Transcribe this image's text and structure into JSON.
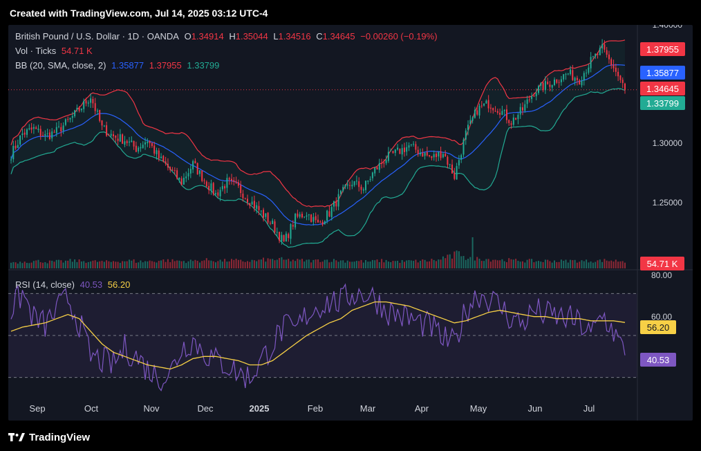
{
  "header": {
    "watermark": "Created with TradingView.com, Jul 14, 2025 03:12 UTC-4"
  },
  "legend": {
    "symbol": "British Pound / U.S. Dollar · 1D · OANDA",
    "o_label": "O",
    "o_value": "1.34914",
    "h_label": "H",
    "h_value": "1.35044",
    "l_label": "L",
    "l_value": "1.34516",
    "c_label": "C",
    "c_value": "1.34645",
    "change": "−0.00260 (−0.19%)",
    "vol_label": "Vol · Ticks",
    "vol_value": "54.71 K",
    "bb_label": "BB (20, SMA, close, 2)",
    "bb_basis": "1.35877",
    "bb_upper": "1.37955",
    "bb_lower": "1.33799",
    "rsi_label": "RSI (14, close)",
    "rsi_value": "40.53",
    "rsi_ma": "56.20"
  },
  "footer": {
    "brand": "TradingView"
  },
  "colors": {
    "up": "#22ab94",
    "down": "#f23645",
    "basis": "#2962ff",
    "upper": "#f23645",
    "lower": "#22ab94",
    "rsi": "#7e57c2",
    "rsi_ma": "#f7d046",
    "background": "#131722",
    "page": "#000000"
  },
  "chart_data": {
    "type": "candlestick",
    "symbol": "GBPUSD",
    "interval": "1D",
    "price_axis": {
      "ticks": [
        "1.40000",
        "1.30000",
        "1.25000"
      ],
      "ylim": [
        1.2,
        1.4
      ]
    },
    "rsi_axis": {
      "ticks": [
        "80.00",
        "60.00"
      ],
      "ylim": [
        20,
        80
      ],
      "bands": [
        30,
        50,
        70
      ]
    },
    "x_ticks": [
      "Sep",
      "Oct",
      "Nov",
      "Dec",
      "2025",
      "Feb",
      "Mar",
      "Apr",
      "May",
      "Jun",
      "Jul"
    ],
    "price_labels": [
      {
        "value": 1.37955,
        "text": "1.37955",
        "color": "#f23645"
      },
      {
        "value": 1.35877,
        "text": "1.35877",
        "color": "#2962ff"
      },
      {
        "value": 1.34645,
        "text": "1.34645",
        "color": "#f23645"
      },
      {
        "value": 1.33799,
        "text": "1.33799",
        "color": "#22ab94"
      }
    ],
    "volume_label": {
      "text": "54.71 K",
      "color": "#f23645"
    },
    "rsi_labels": [
      {
        "value": 56.2,
        "text": "56.20",
        "color": "#f7d046"
      },
      {
        "value": 40.53,
        "text": "40.53",
        "color": "#7e57c2"
      }
    ],
    "last_price": 1.34645,
    "weekly_closes": [
      1.293,
      1.31,
      1.314,
      1.308,
      1.312,
      1.32,
      1.33,
      1.341,
      1.315,
      1.308,
      1.305,
      1.298,
      1.305,
      1.29,
      1.28,
      1.27,
      1.285,
      1.272,
      1.26,
      1.27,
      1.265,
      1.255,
      1.245,
      1.235,
      1.22,
      1.24,
      1.245,
      1.235,
      1.245,
      1.26,
      1.27,
      1.265,
      1.28,
      1.29,
      1.295,
      1.3,
      1.295,
      1.29,
      1.295,
      1.275,
      1.31,
      1.33,
      1.335,
      1.33,
      1.32,
      1.33,
      1.345,
      1.35,
      1.355,
      1.36,
      1.355,
      1.37,
      1.38,
      1.365,
      1.3465
    ],
    "weekly_volumes": [
      18,
      20,
      21,
      19,
      20,
      22,
      21,
      20,
      19,
      21,
      22,
      20,
      21,
      23,
      22,
      21,
      22,
      24,
      22,
      23,
      21,
      22,
      25,
      26,
      24,
      23,
      22,
      24,
      23,
      22,
      21,
      20,
      22,
      21,
      20,
      21,
      22,
      24,
      33,
      42,
      30,
      28,
      26,
      24,
      23,
      22,
      21,
      22,
      21,
      22,
      21,
      22,
      23,
      22,
      20
    ],
    "rsi_weekly": [
      62,
      70,
      58,
      55,
      62,
      68,
      56,
      40,
      38,
      36,
      44,
      40,
      34,
      30,
      32,
      44,
      48,
      42,
      38,
      36,
      32,
      30,
      38,
      46,
      54,
      52,
      60,
      64,
      66,
      66,
      70,
      70,
      68,
      62,
      60,
      58,
      56,
      54,
      48,
      46,
      62,
      70,
      68,
      64,
      58,
      56,
      62,
      60,
      59,
      58,
      56,
      50,
      60,
      52,
      40.53
    ],
    "rsi_ma_weekly": [
      52,
      54,
      55,
      56,
      58,
      60,
      58,
      52,
      46,
      42,
      40,
      38,
      36,
      35,
      34,
      36,
      39,
      40,
      40,
      39,
      38,
      36,
      36,
      38,
      42,
      46,
      50,
      53,
      56,
      58,
      62,
      64,
      66,
      66,
      65,
      64,
      62,
      60,
      58,
      56,
      57,
      59,
      61,
      62,
      61,
      60,
      59,
      59,
      58,
      58,
      58,
      57,
      57,
      57,
      56.2
    ]
  }
}
